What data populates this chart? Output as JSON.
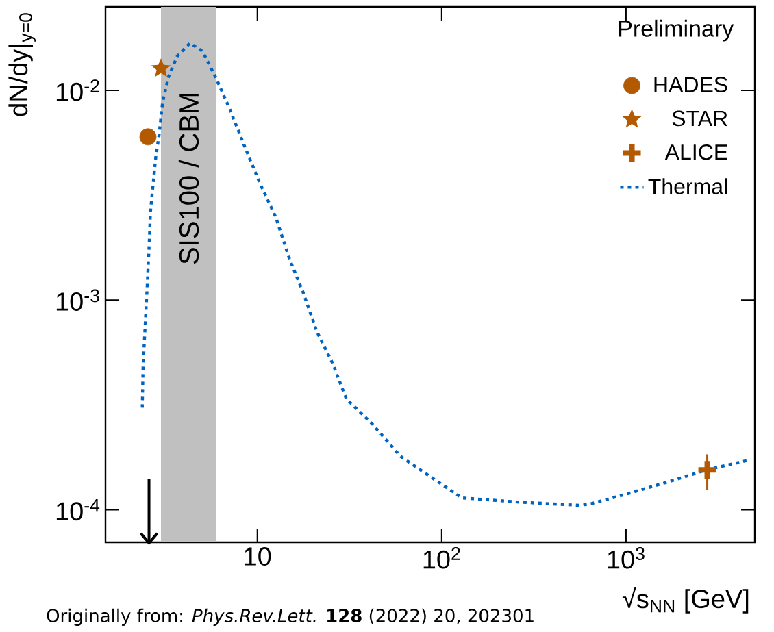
{
  "chart_data": {
    "type": "scatter",
    "log": "xy",
    "xlabel": "√s$_{NN}$ [GeV]",
    "ylabel": "dN/dy|$_{y=0}$",
    "xlim": [
      1.5,
      5000
    ],
    "ylim": [
      7e-05,
      0.025
    ],
    "xticks": [
      10,
      {
        "value": 100,
        "label": "10$^{2}$"
      },
      {
        "value": 1000,
        "label": "10$^{3}$"
      }
    ],
    "yticks": [
      {
        "value": 0.0001,
        "label": "10$^{-4}$"
      },
      {
        "value": 0.001,
        "label": "10$^{-3}$"
      },
      {
        "value": 0.01,
        "label": "10$^{-2}$"
      }
    ],
    "legend": "top right",
    "bands": [
      {
        "axis": "x",
        "from": 3,
        "to": 6,
        "label": "SIS100 / CBM",
        "color": "#c0c0c0"
      }
    ],
    "annotations": [
      "Preliminary",
      "Originally from: *Phys.Rev.Lett.* **128** (2022) 20, 202301"
    ],
    "series": [
      {
        "name": "HADES",
        "marker": "circle",
        "color": "#b35900",
        "x": [
          2.55
        ],
        "values": [
          0.006
        ]
      },
      {
        "name": "STAR",
        "marker": "star",
        "color": "#b35900",
        "x": [
          3.0
        ],
        "values": [
          0.0127
        ]
      },
      {
        "name": "ALICE",
        "marker": "cross",
        "color": "#b35900",
        "x": [
          2760
        ],
        "values": [
          0.000155
        ],
        "errors": [
          [
            0.000124,
            0.000184
          ]
        ]
      },
      {
        "name": "Thermal",
        "type": "line",
        "line_style": "dotted",
        "marker": "none",
        "color": "#0063c0",
        "x": [
          2.375,
          2.4,
          2.51,
          2.58,
          2.63,
          2.71,
          2.81,
          2.93,
          3.06,
          3.29,
          3.68,
          4.31,
          5.04,
          5.99,
          7.1,
          8.42,
          10.3,
          12.6,
          14.9,
          17.7,
          21.0,
          25.6,
          30.4,
          41.8,
          59.8,
          82.8,
          129,
          257,
          564,
          646,
          1009,
          1746,
          2730,
          4690
        ],
        "values": [
          0.000307,
          0.00049,
          0.00104,
          0.00171,
          0.00263,
          0.00346,
          0.00478,
          0.00613,
          0.00874,
          0.01154,
          0.01456,
          0.0168,
          0.01535,
          0.01137,
          0.0081,
          0.00556,
          0.00362,
          0.00248,
          0.00158,
          0.00109,
          0.00071,
          0.0005,
          0.000338,
          0.000258,
          0.00018,
          0.000148,
          0.000114,
          0.000109,
          0.000105,
          0.000107,
          0.000119,
          0.000137,
          0.000155,
          0.000173
        ]
      }
    ]
  }
}
